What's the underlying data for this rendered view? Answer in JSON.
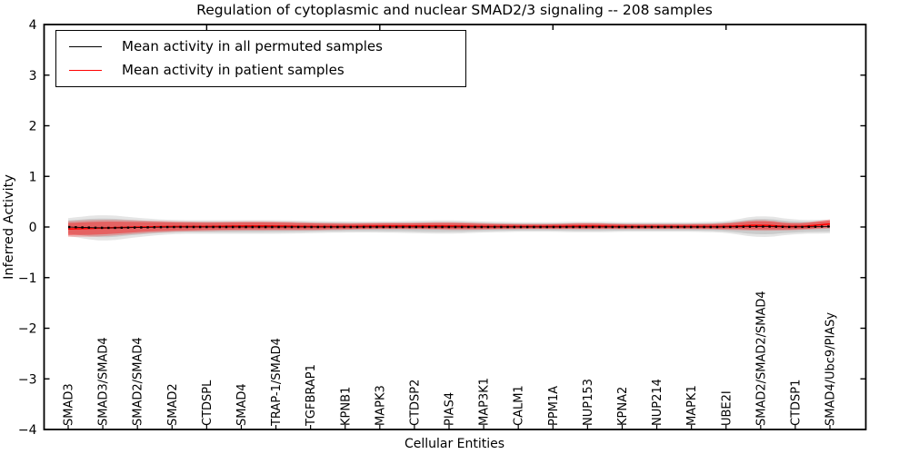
{
  "title": "Regulation of cytoplasmic and nuclear SMAD2/3 signaling -- 208 samples",
  "legend": {
    "items": [
      {
        "label": "Mean activity in all permuted samples",
        "color": "#000000"
      },
      {
        "label": "Mean activity in patient samples",
        "color": "#ff0000"
      }
    ],
    "position": "upper left"
  },
  "chart_data": {
    "type": "line",
    "title": "Regulation of cytoplasmic and nuclear SMAD2/3 signaling -- 208 samples",
    "xlabel": "Cellular Entities",
    "ylabel": "Inferred Activity",
    "ylim": [
      -4,
      4
    ],
    "yticks": [
      4,
      3,
      2,
      1,
      0,
      -1,
      -2,
      -3,
      -4
    ],
    "grid": false,
    "legend_position": "upper left",
    "top_tick_indices": [
      4,
      9,
      14,
      19
    ],
    "categories": [
      "SMAD3",
      "SMAD3/SMAD4",
      "SMAD2/SMAD4",
      "SMAD2",
      "CTDSPL",
      "SMAD4",
      "TRAP-1/SMAD4",
      "TGFBRAP1",
      "KPNB1",
      "MAPK3",
      "CTDSP2",
      "PIAS4",
      "MAP3K1",
      "CALM1",
      "PPM1A",
      "NUP153",
      "KPNA2",
      "NUP214",
      "MAPK1",
      "UBE2I",
      "SMAD2/SMAD2/SMAD4",
      "CTDSP1",
      "SMAD4/Ubc9/PIASy"
    ],
    "series": [
      {
        "name": "Mean activity in all permuted samples",
        "color": "#000000",
        "line_style": "dotted",
        "values": [
          0.0,
          -0.02,
          -0.01,
          0.0,
          0.0,
          0.0,
          0.0,
          0.0,
          0.0,
          0.0,
          0.0,
          0.0,
          0.0,
          0.0,
          0.0,
          0.0,
          0.0,
          0.0,
          0.0,
          0.0,
          0.01,
          0.0,
          0.01
        ],
        "band_half_width": [
          0.13,
          0.2,
          0.14,
          0.1,
          0.1,
          0.1,
          0.1,
          0.09,
          0.08,
          0.08,
          0.09,
          0.1,
          0.08,
          0.07,
          0.07,
          0.08,
          0.07,
          0.07,
          0.07,
          0.08,
          0.17,
          0.1,
          0.1
        ],
        "band_color": "#888888"
      },
      {
        "name": "Mean activity in patient samples",
        "color": "#ff0000",
        "line_style": "solid",
        "values": [
          -0.04,
          -0.02,
          0.0,
          0.01,
          0.01,
          0.02,
          0.02,
          0.01,
          0.01,
          0.02,
          0.02,
          0.02,
          0.01,
          0.01,
          0.01,
          0.02,
          0.01,
          0.01,
          0.01,
          0.01,
          0.04,
          0.0,
          0.06
        ],
        "band_half_width": [
          0.12,
          0.13,
          0.1,
          0.08,
          0.07,
          0.07,
          0.07,
          0.06,
          0.05,
          0.05,
          0.05,
          0.06,
          0.05,
          0.04,
          0.04,
          0.05,
          0.04,
          0.04,
          0.04,
          0.05,
          0.09,
          0.05,
          0.07
        ],
        "band_color": "#ff0000"
      }
    ]
  }
}
